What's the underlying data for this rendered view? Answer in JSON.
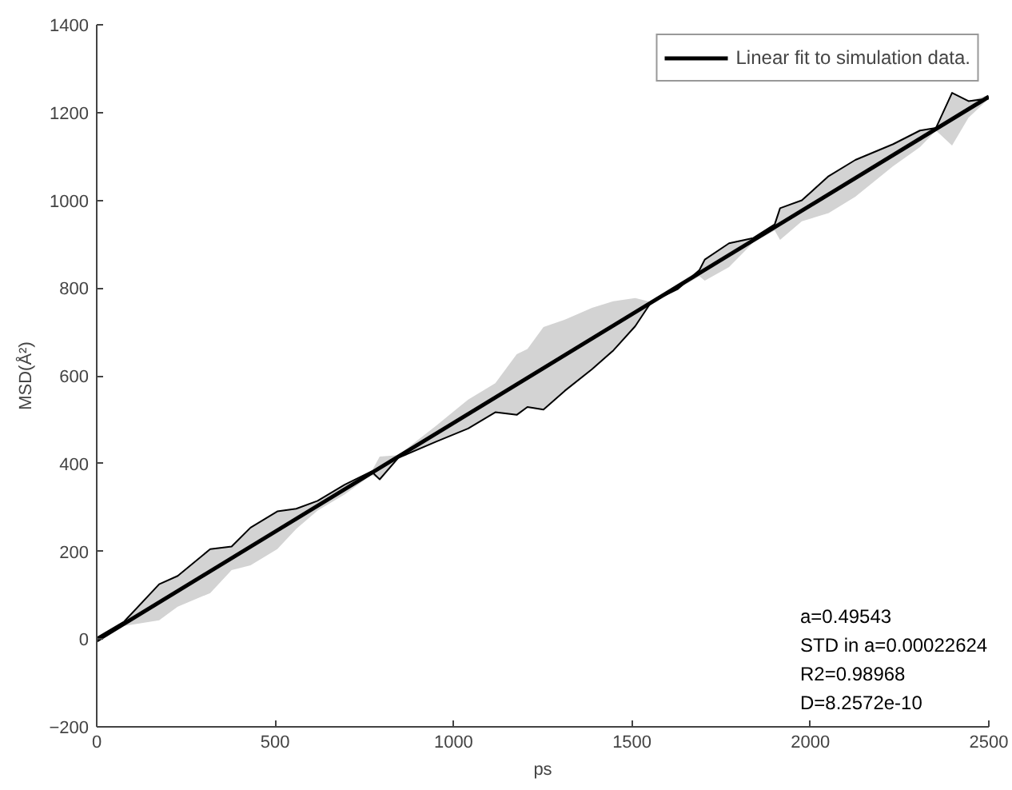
{
  "chart_data": {
    "type": "line",
    "xlabel": "ps",
    "ylabel": "MSD(Å²)",
    "xlim": [
      0,
      2500
    ],
    "ylim": [
      -200,
      1400
    ],
    "xticks": [
      0,
      500,
      1000,
      1500,
      2000,
      2500
    ],
    "yticks": [
      -200,
      0,
      200,
      400,
      600,
      800,
      1000,
      1200,
      1400
    ],
    "grid": false,
    "legend": "top right",
    "marker": "none",
    "series": [
      {
        "color": "#000000",
        "x": [
          0,
          77,
          175,
          227,
          318,
          378,
          431,
          506,
          559,
          619,
          695,
          770,
          793,
          845,
          951,
          1041,
          1117,
          1177,
          1207,
          1252,
          1312,
          1388,
          1448,
          1509,
          1554,
          1629,
          1689,
          1704,
          1772,
          1840,
          1900,
          1915,
          1976,
          2051,
          2126,
          2232,
          2307,
          2352,
          2397,
          2443,
          2500
        ],
        "values": [
          3,
          40,
          125,
          144,
          205,
          211,
          254,
          291,
          297,
          315,
          352,
          382,
          364,
          413,
          450,
          480,
          517,
          511,
          529,
          523,
          566,
          615,
          658,
          713,
          768,
          798,
          841,
          865,
          902,
          914,
          945,
          982,
          1000,
          1055,
          1092,
          1128,
          1159,
          1165,
          1245,
          1226,
          1232
        ],
        "lower": [
          -9,
          30,
          43,
          74,
          105,
          157,
          168,
          205,
          251,
          293,
          330,
          374,
          364,
          413,
          450,
          480,
          517,
          511,
          529,
          523,
          566,
          615,
          658,
          713,
          766,
          798,
          827,
          817,
          848,
          904,
          931,
          910,
          952,
          971,
          1008,
          1078,
          1121,
          1159,
          1125,
          1188,
          1232
        ],
        "upper": [
          3,
          40,
          125,
          144,
          205,
          211,
          254,
          291,
          297,
          315,
          352,
          382,
          416,
          419,
          486,
          546,
          583,
          649,
          661,
          711,
          728,
          755,
          770,
          777,
          768,
          810,
          841,
          865,
          902,
          914,
          945,
          982,
          1000,
          1055,
          1092,
          1128,
          1159,
          1165,
          1245,
          1226,
          1240
        ],
        "axis": "y"
      },
      {
        "name": "Linear fit to simulation data.",
        "color": "#000000",
        "x": [
          0,
          2500
        ],
        "values": [
          -3,
          1236
        ]
      }
    ],
    "annotations": [
      "a=0.49543",
      "STD in a=0.00022624",
      "R2=0.98968",
      "D=8.2572e-10"
    ]
  }
}
